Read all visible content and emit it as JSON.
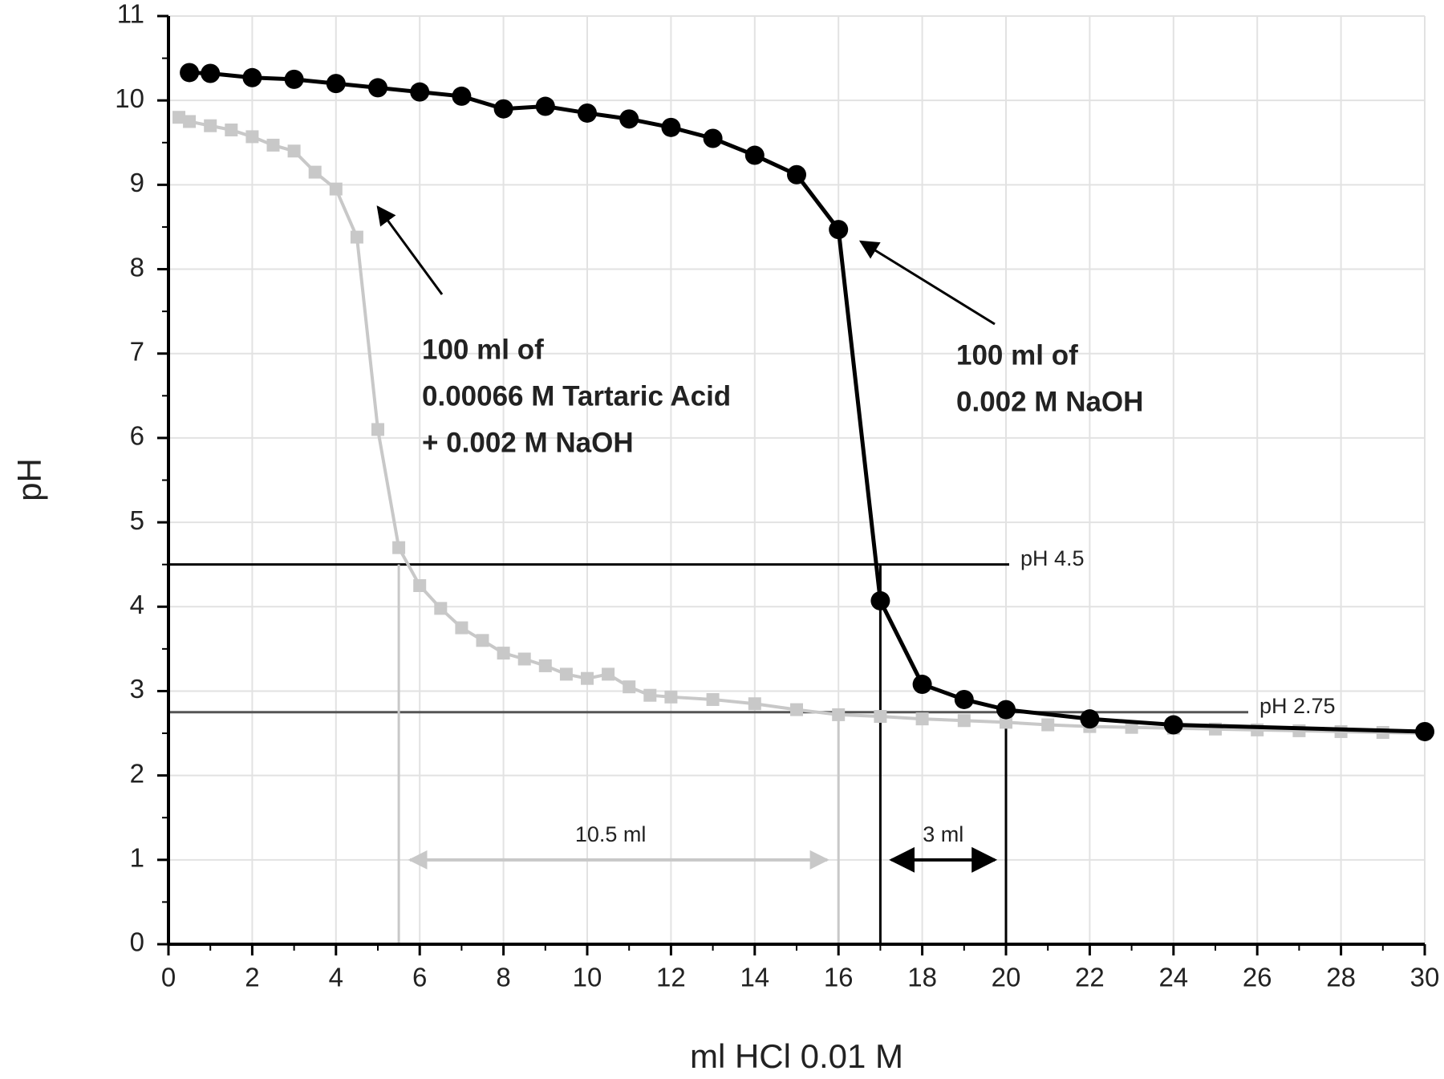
{
  "chart_data": {
    "type": "line",
    "x_label": "ml HCl 0.01 M",
    "y_label": "pH",
    "xlim": [
      0,
      30
    ],
    "ylim": [
      0,
      11
    ],
    "xticks": [
      0,
      2,
      4,
      6,
      8,
      10,
      12,
      14,
      16,
      18,
      20,
      22,
      24,
      26,
      28,
      30
    ],
    "yticks": [
      0,
      1,
      2,
      3,
      4,
      5,
      6,
      7,
      8,
      9,
      10,
      11
    ],
    "grid": true,
    "series": [
      {
        "name": "100 ml of 0.002 M NaOH",
        "color": "#000000",
        "marker": "circle",
        "x": [
          0.5,
          1,
          2,
          3,
          4,
          5,
          6,
          7,
          8,
          9,
          10,
          11,
          12,
          13,
          14,
          15,
          16,
          17,
          18,
          19,
          20,
          22,
          24,
          30
        ],
        "values": [
          10.33,
          10.32,
          10.27,
          10.25,
          10.2,
          10.15,
          10.1,
          10.05,
          9.9,
          9.93,
          9.85,
          9.78,
          9.68,
          9.55,
          9.35,
          9.12,
          8.47,
          4.07,
          3.08,
          2.9,
          2.78,
          2.67,
          2.6,
          2.52
        ]
      },
      {
        "name": "100 ml of 0.00066 M Tartaric Acid + 0.002 M NaOH",
        "color": "#c8c8c8",
        "marker": "square",
        "x": [
          0.25,
          0.5,
          1,
          1.5,
          2,
          2.5,
          3,
          3.5,
          4,
          4.5,
          5,
          5.5,
          6,
          6.5,
          7,
          7.5,
          8,
          8.5,
          9,
          9.5,
          10,
          10.5,
          11,
          11.5,
          12,
          13,
          14,
          15,
          16,
          17,
          18,
          19,
          20,
          21,
          22,
          23,
          24,
          25,
          26,
          27,
          28,
          29,
          30
        ],
        "values": [
          9.8,
          9.75,
          9.7,
          9.65,
          9.57,
          9.47,
          9.4,
          9.15,
          8.95,
          8.38,
          6.1,
          4.7,
          4.25,
          3.98,
          3.75,
          3.6,
          3.45,
          3.38,
          3.3,
          3.2,
          3.15,
          3.2,
          3.05,
          2.95,
          2.93,
          2.9,
          2.85,
          2.78,
          2.72,
          2.7,
          2.67,
          2.65,
          2.63,
          2.6,
          2.58,
          2.57,
          2.56,
          2.55,
          2.54,
          2.53,
          2.52,
          2.51,
          2.5
        ]
      }
    ],
    "reference_lines": [
      {
        "value": 4.5,
        "label": "pH 4.5",
        "color": "#000000"
      },
      {
        "value": 2.75,
        "label": "pH 2.75",
        "color": "#555555"
      }
    ],
    "spans": [
      {
        "from": 5.5,
        "to": 16,
        "label": "10.5 ml",
        "color": "#c8c8c8"
      },
      {
        "from": 17,
        "to": 20,
        "label": "3 ml",
        "color": "#000000"
      }
    ],
    "annotations": [
      [
        "100 ml of",
        "0.00066 M Tartaric Acid",
        "+ 0.002  M NaOH"
      ],
      [
        "100 ml of",
        "0.002 M NaOH"
      ]
    ]
  }
}
